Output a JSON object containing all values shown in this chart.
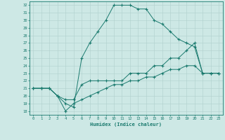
{
  "xlabel": "Humidex (Indice chaleur)",
  "xlim": [
    -0.5,
    23.5
  ],
  "ylim": [
    17.5,
    32.5
  ],
  "xticks": [
    0,
    1,
    2,
    3,
    4,
    5,
    6,
    7,
    8,
    9,
    10,
    11,
    12,
    13,
    14,
    15,
    16,
    17,
    18,
    19,
    20,
    21,
    22,
    23
  ],
  "yticks": [
    18,
    19,
    20,
    21,
    22,
    23,
    24,
    25,
    26,
    27,
    28,
    29,
    30,
    31,
    32
  ],
  "bg_color": "#cde8e5",
  "grid_color": "#b0d0cc",
  "line_color": "#1a7a6e",
  "line1_x": [
    0,
    1,
    2,
    3,
    4,
    5,
    6,
    7,
    8,
    9,
    10,
    11,
    12,
    13,
    14,
    15,
    16,
    17,
    18,
    19,
    20,
    21,
    22,
    23
  ],
  "line1_y": [
    21,
    21,
    21,
    20,
    19,
    18.5,
    25,
    27,
    28.5,
    30,
    32,
    32,
    32,
    31.5,
    31.5,
    30,
    29.5,
    28.5,
    27.5,
    27,
    26.5,
    23,
    23,
    23
  ],
  "line2_x": [
    0,
    1,
    2,
    3,
    4,
    5,
    6,
    7,
    8,
    9,
    10,
    11,
    12,
    13,
    14,
    15,
    16,
    17,
    18,
    19,
    20,
    21,
    22,
    23
  ],
  "line2_y": [
    21,
    21,
    21,
    20,
    19.5,
    19.5,
    21.5,
    22,
    22,
    22,
    22,
    22,
    23,
    23,
    23,
    24,
    24,
    25,
    25,
    26,
    27,
    23,
    23,
    23
  ],
  "line3_x": [
    0,
    1,
    2,
    3,
    4,
    5,
    6,
    7,
    8,
    9,
    10,
    11,
    12,
    13,
    14,
    15,
    16,
    17,
    18,
    19,
    20,
    21,
    22,
    23
  ],
  "line3_y": [
    21,
    21,
    21,
    20,
    18,
    19,
    19.5,
    20,
    20.5,
    21,
    21.5,
    21.5,
    22,
    22,
    22.5,
    22.5,
    23,
    23.5,
    23.5,
    24,
    24,
    23,
    23,
    23
  ]
}
